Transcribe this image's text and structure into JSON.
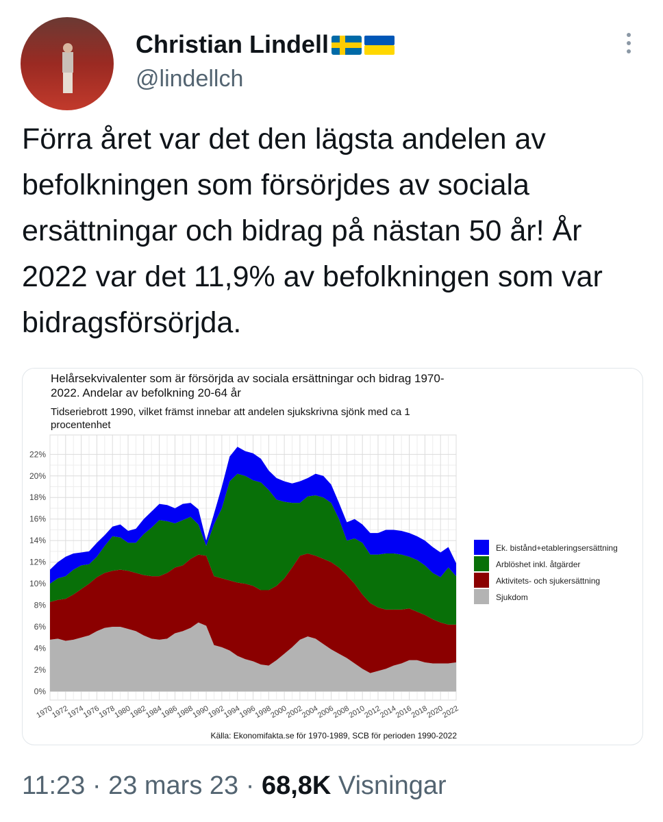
{
  "author": {
    "name": "Christian Lindell",
    "handle": "@lindellch"
  },
  "text": "Förra året var det den lägsta andelen av befolkningen som försörjdes av sociala ersättningar och bidrag på nästan 50 år! År 2022 var det 11,9% av befolkningen som var bidragsförsörjda.",
  "chart_data": {
    "type": "stacked-area",
    "title": "Helårsekvivalenter som är försörjda av sociala ersättningar och bidrag 1970-2022. Andelar av befolkning 20-64 år",
    "subtitle": "Tidseriebrott 1990, vilket främst innebar att andelen sjukskrivna sjönk med ca 1 procentenhet",
    "source": "Källa: Ekonomifakta.se för 1970-1989, SCB för perioden 1990-2022",
    "x": [
      1970,
      1971,
      1972,
      1973,
      1974,
      1975,
      1976,
      1977,
      1978,
      1979,
      1980,
      1981,
      1982,
      1983,
      1984,
      1985,
      1986,
      1987,
      1988,
      1989,
      1990,
      1991,
      1992,
      1993,
      1994,
      1995,
      1996,
      1997,
      1998,
      1999,
      2000,
      2001,
      2002,
      2003,
      2004,
      2005,
      2006,
      2007,
      2008,
      2009,
      2010,
      2011,
      2012,
      2013,
      2014,
      2015,
      2016,
      2017,
      2018,
      2019,
      2020,
      2021,
      2022
    ],
    "xlim": [
      1970,
      2022
    ],
    "xticks": [
      1970,
      1972,
      1974,
      1976,
      1978,
      1980,
      1982,
      1984,
      1986,
      1988,
      1990,
      1992,
      1994,
      1996,
      1998,
      2000,
      2002,
      2004,
      2006,
      2008,
      2010,
      2012,
      2014,
      2016,
      2018,
      2020,
      2022
    ],
    "ylim": [
      -0.8,
      23.8
    ],
    "yticks": [
      {
        "value": 0,
        "label": "0%"
      },
      {
        "value": 2,
        "label": "2%"
      },
      {
        "value": 4,
        "label": "4%"
      },
      {
        "value": 6,
        "label": "6%"
      },
      {
        "value": 8,
        "label": "8%"
      },
      {
        "value": 10,
        "label": "10%"
      },
      {
        "value": 12,
        "label": "12%"
      },
      {
        "value": 14,
        "label": "14%"
      },
      {
        "value": 16,
        "label": "16%"
      },
      {
        "value": 18,
        "label": "18%"
      },
      {
        "value": 20,
        "label": "20%"
      },
      {
        "value": 22,
        "label": "22%"
      }
    ],
    "grid": true,
    "legend": "right",
    "series": [
      {
        "name": "Ek. bistånd+etableringsersättning",
        "color": "#0000f5",
        "values": [
          1.3,
          1.5,
          1.8,
          1.5,
          1.2,
          1.2,
          1.3,
          1.0,
          0.9,
          1.2,
          1.1,
          1.3,
          1.4,
          1.5,
          1.5,
          1.5,
          1.4,
          1.5,
          1.3,
          1.4,
          0.5,
          1.0,
          2.0,
          2.3,
          2.5,
          2.3,
          2.5,
          2.2,
          1.8,
          2.0,
          1.9,
          1.8,
          2.0,
          1.7,
          2.0,
          2.0,
          1.7,
          1.5,
          1.7,
          1.8,
          1.7,
          2.0,
          2.0,
          2.2,
          2.2,
          2.2,
          2.2,
          2.2,
          2.3,
          2.4,
          2.3,
          1.9,
          1.2
        ]
      },
      {
        "name": "Arblöshet inkl. åtgärder",
        "color": "#087008",
        "values": [
          1.7,
          2.0,
          2.1,
          2.3,
          2.2,
          1.8,
          1.9,
          2.5,
          3.2,
          3.0,
          2.6,
          2.8,
          3.8,
          4.5,
          5.2,
          4.8,
          4.1,
          4.2,
          3.9,
          2.8,
          0.9,
          4.8,
          6.5,
          9.2,
          10.1,
          10.0,
          9.8,
          10.0,
          9.3,
          8.0,
          7.1,
          6.0,
          4.9,
          5.3,
          5.6,
          5.7,
          5.5,
          4.5,
          3.2,
          4.2,
          4.8,
          4.5,
          4.9,
          5.2,
          5.2,
          5.1,
          4.8,
          4.8,
          4.6,
          4.3,
          4.2,
          5.3,
          4.5
        ]
      },
      {
        "name": "Aktivitets- och sjukersättning",
        "color": "#8b0000",
        "values": [
          3.5,
          3.6,
          3.9,
          4.2,
          4.5,
          4.8,
          5.0,
          5.1,
          5.2,
          5.3,
          5.4,
          5.4,
          5.6,
          5.8,
          5.9,
          6.1,
          6.1,
          6.1,
          6.4,
          6.3,
          6.5,
          6.4,
          6.4,
          6.5,
          6.8,
          7.0,
          7.0,
          6.9,
          7.0,
          6.9,
          7.0,
          7.4,
          7.8,
          7.7,
          7.7,
          7.9,
          8.1,
          8.0,
          7.7,
          7.4,
          6.9,
          6.5,
          5.9,
          5.5,
          5.2,
          5.0,
          4.8,
          4.5,
          4.4,
          4.1,
          3.8,
          3.6,
          3.5
        ]
      },
      {
        "name": "Sjukdom",
        "color": "#b3b3b3",
        "values": [
          4.8,
          4.9,
          4.7,
          4.8,
          5.0,
          5.2,
          5.6,
          5.9,
          6.0,
          6.0,
          5.8,
          5.6,
          5.2,
          4.9,
          4.8,
          4.9,
          5.4,
          5.6,
          5.9,
          6.4,
          6.1,
          4.3,
          4.1,
          3.8,
          3.3,
          3.0,
          2.8,
          2.5,
          2.4,
          2.9,
          3.5,
          4.1,
          4.8,
          5.1,
          4.9,
          4.4,
          3.9,
          3.5,
          3.1,
          2.6,
          2.1,
          1.7,
          1.9,
          2.1,
          2.4,
          2.6,
          2.9,
          2.9,
          2.7,
          2.6,
          2.6,
          2.6,
          2.7
        ]
      }
    ]
  },
  "footer": {
    "time": "11:23",
    "separator": "·",
    "date": "23 mars 23",
    "views": "68,8K",
    "views_label": "Visningar"
  }
}
